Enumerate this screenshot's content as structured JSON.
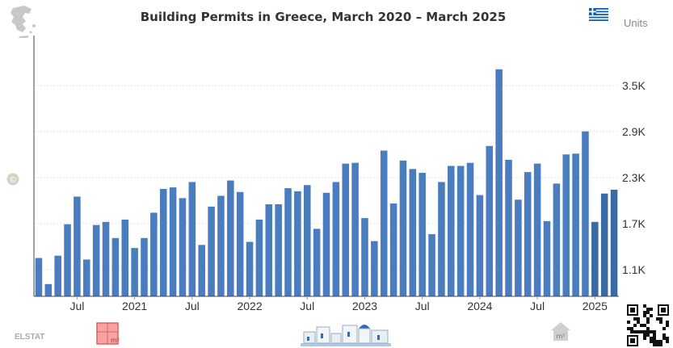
{
  "chart_data": {
    "type": "bar",
    "title": "Building Permits in Greece, March 2020 – March 2025",
    "ylabel": "Units",
    "ylim": [
      750,
      4150
    ],
    "yticks": [
      1100,
      1700,
      2300,
      2900,
      3500
    ],
    "ytick_labels": [
      "1.1K",
      "1.7K",
      "2.3K",
      "2.9K",
      "3.5K"
    ],
    "xtick_labels": [
      {
        "label": "Jul",
        "index": 4
      },
      {
        "label": "2021",
        "index": 10
      },
      {
        "label": "Jul",
        "index": 16
      },
      {
        "label": "2022",
        "index": 22
      },
      {
        "label": "Jul",
        "index": 28
      },
      {
        "label": "2023",
        "index": 34
      },
      {
        "label": "Jul",
        "index": 40
      },
      {
        "label": "2024",
        "index": 46
      },
      {
        "label": "Jul",
        "index": 52
      },
      {
        "label": "2025",
        "index": 58
      }
    ],
    "highlight_from_index": 58,
    "grid": true,
    "colors": {
      "bar": "#4a7dbf",
      "bar_highlight": "#3a6aa5",
      "grid": "#e4e4e4",
      "axis": "#444444",
      "tick_text": "#333333"
    },
    "values": [
      1250,
      910,
      1280,
      1690,
      2050,
      1230,
      1680,
      1720,
      1510,
      1750,
      1380,
      1510,
      1840,
      2150,
      2170,
      2030,
      2240,
      1420,
      1920,
      2060,
      2260,
      2110,
      1460,
      1750,
      1950,
      1950,
      2160,
      2120,
      2200,
      1630,
      2100,
      2240,
      2480,
      2490,
      1770,
      1470,
      2650,
      1960,
      2520,
      2410,
      2360,
      1560,
      2240,
      2450,
      2450,
      2490,
      2070,
      2710,
      3710,
      2530,
      2010,
      2370,
      2480,
      1730,
      2220,
      2600,
      2610,
      2900,
      1720,
      2090,
      2140
    ]
  },
  "icons": {
    "map": "greece-map-icon",
    "flag": "greece-flag-icon",
    "copyright": "copyright-icon",
    "sqm": "square-meter-icon",
    "houses": "santorini-houses-icon",
    "house": "house-m2-icon",
    "qr": "qr-code-icon"
  },
  "footer": {
    "source": "ELSTAT",
    "sqm_label": "m²",
    "house_label": "m²"
  }
}
